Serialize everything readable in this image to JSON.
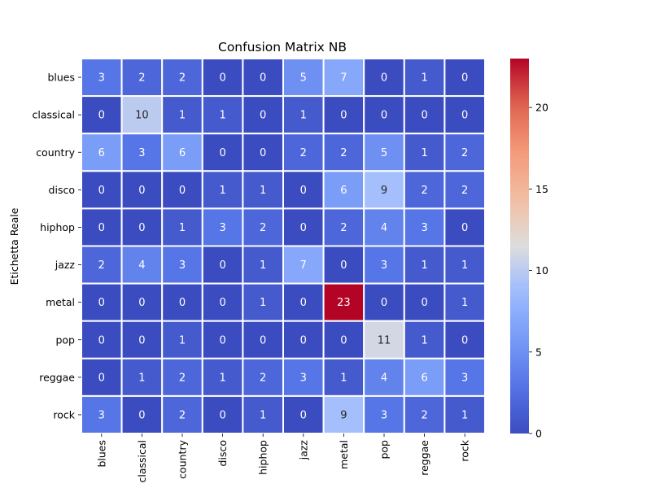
{
  "chart_data": {
    "type": "heatmap",
    "title": "Confusion Matrix NB",
    "ylabel": "Etichetta Reale",
    "xlabel": "",
    "row_labels": [
      "blues",
      "classical",
      "country",
      "disco",
      "hiphop",
      "jazz",
      "metal",
      "pop",
      "reggae",
      "rock"
    ],
    "col_labels": [
      "blues",
      "classical",
      "country",
      "disco",
      "hiphop",
      "jazz",
      "metal",
      "pop",
      "reggae",
      "rock"
    ],
    "values": [
      [
        3,
        2,
        2,
        0,
        0,
        5,
        7,
        0,
        1,
        0
      ],
      [
        0,
        10,
        1,
        1,
        0,
        1,
        0,
        0,
        0,
        0
      ],
      [
        6,
        3,
        6,
        0,
        0,
        2,
        2,
        5,
        1,
        2
      ],
      [
        0,
        0,
        0,
        1,
        1,
        0,
        6,
        9,
        2,
        2
      ],
      [
        0,
        0,
        1,
        3,
        2,
        0,
        2,
        4,
        3,
        0
      ],
      [
        2,
        4,
        3,
        0,
        1,
        7,
        0,
        3,
        1,
        1
      ],
      [
        0,
        0,
        0,
        0,
        1,
        0,
        23,
        0,
        0,
        1
      ],
      [
        0,
        0,
        1,
        0,
        0,
        0,
        0,
        11,
        1,
        0
      ],
      [
        0,
        1,
        2,
        1,
        2,
        3,
        1,
        4,
        6,
        3
      ],
      [
        3,
        0,
        2,
        0,
        1,
        0,
        9,
        3,
        2,
        1
      ]
    ],
    "colormap": "coolwarm",
    "vmin": 0,
    "vmax": 23,
    "colorbar_ticks": [
      0,
      5,
      10,
      15,
      20
    ],
    "grid": false
  }
}
